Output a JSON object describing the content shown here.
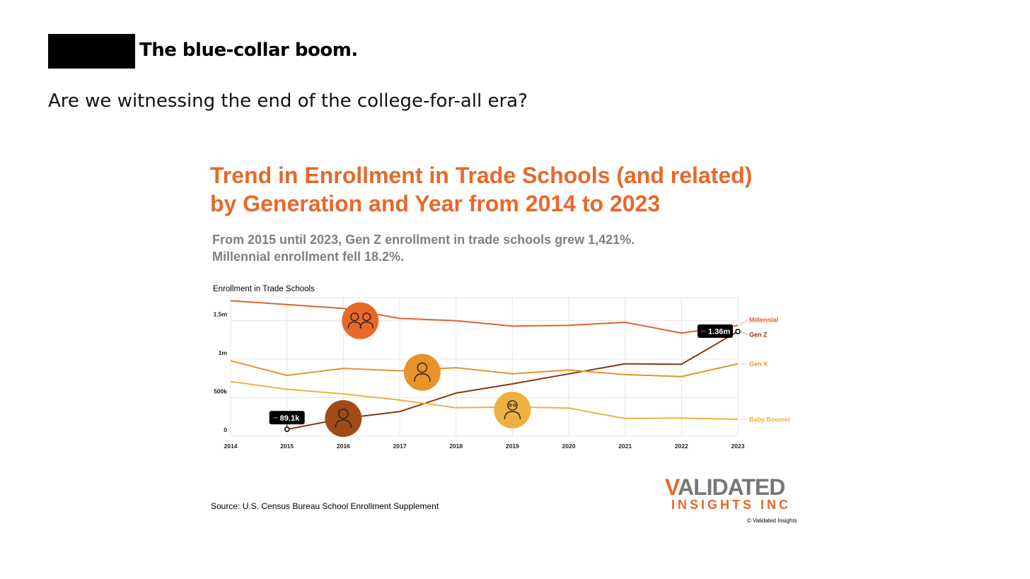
{
  "header": {
    "headline": "The blue-collar boom.",
    "question": "Are we witnessing the end of the college-for-all era?"
  },
  "chart_title": {
    "line1": "Trend in Enrollment in Trade Schools (and related)",
    "line2": "by Generation and Year from 2014 to 2023"
  },
  "chart_subtitle": {
    "line1": "From 2015 until 2023, Gen Z enrollment in trade schools grew 1,421%.",
    "line2": "Millennial enrollment fell 18.2%."
  },
  "source": "Source: U.S. Census Bureau School Enrollment Supplement",
  "logo": {
    "v": "V",
    "rest": "ALIDATED",
    "bottom": "INSIGHTS INC"
  },
  "copyright": "© Validated Insights",
  "colors": {
    "accent": "#e8682a",
    "millennial": "#e0642a",
    "genz": "#8b3510",
    "genx": "#e8922a",
    "boomer": "#f0b040"
  },
  "chart_data": {
    "type": "line",
    "title": "Trend in Enrollment in Trade Schools (and related) by Generation and Year from 2014 to 2023",
    "ylabel": "Enrollment in Trade Schools",
    "xlabel": "",
    "x": [
      2014,
      2015,
      2016,
      2017,
      2018,
      2019,
      2020,
      2021,
      2022,
      2023
    ],
    "x_tick_labels": [
      "2014",
      "2015",
      "2016",
      "2017",
      "2018",
      "2019",
      "2020",
      "2021",
      "2022",
      "2023"
    ],
    "ylim": [
      0,
      1800000
    ],
    "y_ticks": [
      0,
      500000,
      1000000,
      1500000
    ],
    "y_tick_labels": [
      "0",
      "500k",
      "1m",
      "1.5m"
    ],
    "grid": true,
    "series": [
      {
        "name": "Millennial",
        "color": "#e0642a",
        "x": [
          2014,
          2015,
          2016,
          2017,
          2018,
          2019,
          2020,
          2021,
          2022,
          2023
        ],
        "values": [
          1760000,
          1710000,
          1660000,
          1530000,
          1500000,
          1430000,
          1440000,
          1480000,
          1340000,
          1440000
        ]
      },
      {
        "name": "Gen Z",
        "color": "#8b3510",
        "x": [
          2015,
          2016,
          2017,
          2018,
          2019,
          2020,
          2021,
          2022,
          2023
        ],
        "values": [
          89100,
          230000,
          320000,
          560000,
          680000,
          810000,
          940000,
          935000,
          1360000
        ]
      },
      {
        "name": "Gen X",
        "color": "#e8922a",
        "x": [
          2014,
          2015,
          2016,
          2017,
          2018,
          2019,
          2020,
          2021,
          2022,
          2023
        ],
        "values": [
          980000,
          790000,
          880000,
          850000,
          890000,
          810000,
          860000,
          800000,
          775000,
          940000
        ]
      },
      {
        "name": "Baby Boomer",
        "color": "#f0b040",
        "x": [
          2014,
          2015,
          2016,
          2017,
          2018,
          2019,
          2020,
          2021,
          2022,
          2023
        ],
        "values": [
          710000,
          610000,
          550000,
          470000,
          370000,
          380000,
          365000,
          230000,
          235000,
          220000
        ]
      }
    ],
    "annotations": [
      {
        "label": "89.1k",
        "x": 2015,
        "y": 89100,
        "series": "Gen Z"
      },
      {
        "label": "1.36m",
        "x": 2023,
        "y": 1360000,
        "series": "Gen Z"
      }
    ],
    "icons": [
      {
        "name": "millennial-couple-icon",
        "x": 2016.3,
        "y": 1500000,
        "color": "#e8682a"
      },
      {
        "name": "genx-woman-icon",
        "x": 2017.4,
        "y": 830000,
        "color": "#e8922a"
      },
      {
        "name": "genz-boy-icon",
        "x": 2016.0,
        "y": 230000,
        "color": "#a04a18"
      },
      {
        "name": "boomer-grandpa-icon",
        "x": 2019.0,
        "y": 340000,
        "color": "#f0b040"
      }
    ]
  }
}
